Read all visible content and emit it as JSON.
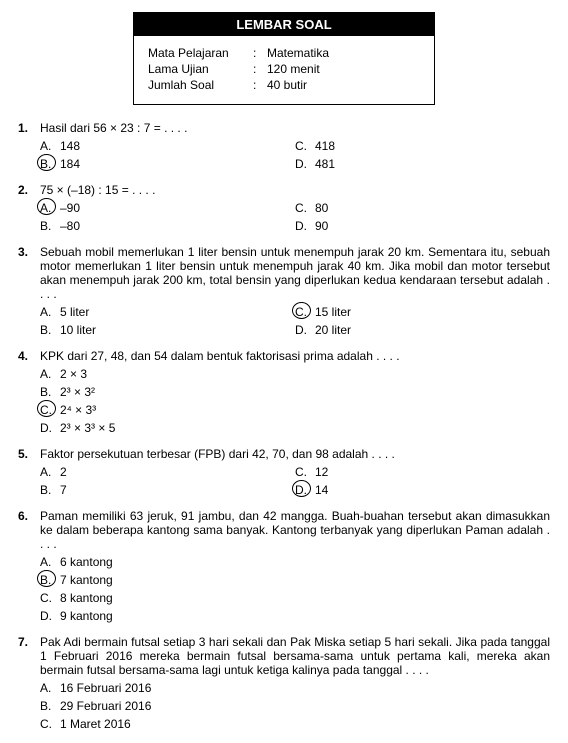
{
  "header": {
    "title": "LEMBAR SOAL",
    "rows": [
      {
        "label": "Mata Pelajaran",
        "value": "Matematika"
      },
      {
        "label": "Lama Ujian",
        "value": "120 menit"
      },
      {
        "label": "Jumlah Soal",
        "value": "40 butir"
      }
    ]
  },
  "questions": [
    {
      "num": "1.",
      "text": "Hasil dari 56 × 23 : 7 = . . . .",
      "layout": "2col",
      "circled": "B",
      "options": [
        {
          "letter": "A.",
          "text": "148"
        },
        {
          "letter": "B.",
          "text": "184"
        },
        {
          "letter": "C.",
          "text": "418"
        },
        {
          "letter": "D.",
          "text": "481"
        }
      ]
    },
    {
      "num": "2.",
      "text": "75 × (–18) : 15 = . . . .",
      "layout": "2col",
      "circled": "A",
      "options": [
        {
          "letter": "A.",
          "text": "–90"
        },
        {
          "letter": "B.",
          "text": "–80"
        },
        {
          "letter": "C.",
          "text": "80"
        },
        {
          "letter": "D.",
          "text": "90"
        }
      ]
    },
    {
      "num": "3.",
      "text": "Sebuah mobil memerlukan 1 liter bensin untuk menempuh jarak 20 km. Sementara itu, sebuah motor memerlukan 1 liter bensin untuk menempuh jarak 40 km. Jika mobil dan motor tersebut akan menempuh jarak 200 km, total bensin yang diperlukan kedua kendaraan tersebut adalah . . . .",
      "layout": "2col",
      "circled": "C",
      "options": [
        {
          "letter": "A.",
          "text": "5 liter"
        },
        {
          "letter": "B.",
          "text": "10 liter"
        },
        {
          "letter": "C.",
          "text": "15 liter"
        },
        {
          "letter": "D.",
          "text": "20 liter"
        }
      ]
    },
    {
      "num": "4.",
      "text": "KPK dari 27, 48, dan 54 dalam bentuk faktorisasi prima adalah . . . .",
      "layout": "1col",
      "circled": "C",
      "options": [
        {
          "letter": "A.",
          "text": "2 × 3"
        },
        {
          "letter": "B.",
          "text": "2³ × 3²"
        },
        {
          "letter": "C.",
          "text": "2⁴ × 3³"
        },
        {
          "letter": "D.",
          "text": "2³ × 3³ × 5"
        }
      ]
    },
    {
      "num": "5.",
      "text": "Faktor persekutuan terbesar (FPB) dari 42, 70, dan 98 adalah . . . .",
      "layout": "2col",
      "circled": "D",
      "options": [
        {
          "letter": "A.",
          "text": "2"
        },
        {
          "letter": "B.",
          "text": "7"
        },
        {
          "letter": "C.",
          "text": "12"
        },
        {
          "letter": "D.",
          "text": "14"
        }
      ]
    },
    {
      "num": "6.",
      "text": "Paman memiliki 63 jeruk, 91 jambu, dan 42 mangga. Buah-buahan tersebut akan dimasukkan ke dalam beberapa kantong sama banyak. Kantong terbanyak yang diperlukan Paman adalah . . . .",
      "layout": "1col",
      "circled": "B",
      "options": [
        {
          "letter": "A.",
          "text": "6 kantong"
        },
        {
          "letter": "B.",
          "text": "7 kantong"
        },
        {
          "letter": "C.",
          "text": "8 kantong"
        },
        {
          "letter": "D.",
          "text": "9 kantong"
        }
      ]
    },
    {
      "num": "7.",
      "text": "Pak Adi bermain futsal setiap 3 hari sekali dan Pak Miska setiap 5 hari sekali. Jika pada tanggal 1 Februari 2016 mereka bermain futsal bersama-sama untuk pertama kali, mereka akan bermain futsal bersama-sama lagi untuk ketiga kalinya pada tanggal . . . .",
      "layout": "1col",
      "circled": "",
      "options": [
        {
          "letter": "A.",
          "text": "16 Februari 2016"
        },
        {
          "letter": "B.",
          "text": "29 Februari 2016"
        },
        {
          "letter": "C.",
          "text": "1 Maret 2016"
        }
      ]
    }
  ]
}
